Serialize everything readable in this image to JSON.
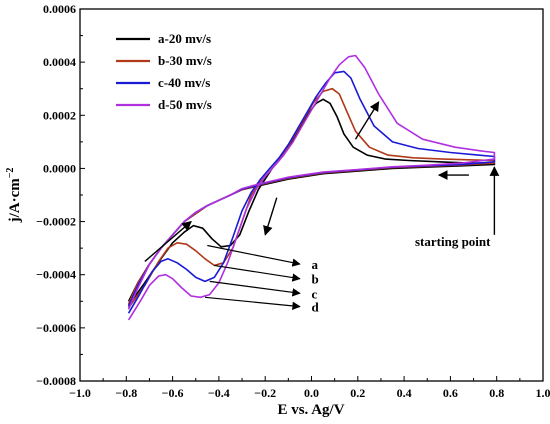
{
  "chart_data": {
    "type": "line",
    "title": "",
    "xlabel": "E vs. Ag/V",
    "ylabel": "j/A·cm",
    "ylabel_sup": "−2",
    "xlim": [
      -1.0,
      1.0
    ],
    "ylim": [
      -0.0008,
      0.0006
    ],
    "x_ticks": [
      -1.0,
      -0.8,
      -0.6,
      -0.4,
      -0.2,
      0.0,
      0.2,
      0.4,
      0.6,
      0.8,
      1.0
    ],
    "x_tick_labels": [
      "−1.0",
      "−0.8",
      "−0.6",
      "−0.4",
      "−0.2",
      "0.0",
      "0.2",
      "0.4",
      "0.6",
      "0.8",
      "1.0"
    ],
    "y_ticks": [
      -0.0008,
      -0.0006,
      -0.0004,
      -0.0002,
      0.0,
      0.0002,
      0.0004,
      0.0006
    ],
    "y_tick_labels": [
      "−0.0008",
      "−0.0006",
      "−0.0004",
      "−0.0002",
      "0.0000",
      "0.0002",
      "0.0004",
      "0.0006"
    ],
    "grid": false,
    "legend_position": "top-left",
    "series": [
      {
        "name": "a-20 mv/s",
        "color": "#000000",
        "x": [
          -0.79,
          -0.72,
          -0.65,
          -0.6,
          -0.55,
          -0.51,
          -0.47,
          -0.43,
          -0.39,
          -0.35,
          -0.31,
          -0.27,
          -0.23,
          -0.2,
          -0.17,
          -0.14,
          -0.1,
          -0.06,
          -0.02,
          0.02,
          0.05,
          0.08,
          0.11,
          0.14,
          0.18,
          0.24,
          0.32,
          0.42,
          0.55,
          0.68,
          0.79,
          0.79,
          0.65,
          0.5,
          0.35,
          0.2,
          0.05,
          -0.1,
          -0.15,
          -0.2,
          -0.25,
          -0.3,
          -0.35,
          -0.4,
          -0.45,
          -0.5,
          -0.55,
          -0.6,
          -0.65,
          -0.7,
          -0.75,
          -0.79
        ],
        "y": [
          -0.000515,
          -0.00043,
          -0.00034,
          -0.00028,
          -0.00024,
          -0.000215,
          -0.000225,
          -0.000265,
          -0.000295,
          -0.00029,
          -0.00025,
          -0.00016,
          -8e-05,
          -4e-05,
          0.0,
          3e-05,
          8e-05,
          0.00014,
          0.0002,
          0.000245,
          0.00026,
          0.000245,
          0.000195,
          0.00013,
          8e-05,
          5e-05,
          3.5e-05,
          3e-05,
          2.5e-05,
          2e-05,
          2e-05,
          1.5e-05,
          1e-05,
          5e-06,
          0.0,
          -1e-05,
          -2e-05,
          -4e-05,
          -5e-05,
          -6e-05,
          -7e-05,
          -8e-05,
          -0.0001,
          -0.00012,
          -0.00014,
          -0.00017,
          -0.0002,
          -0.00025,
          -0.0003,
          -0.00036,
          -0.00043,
          -0.0005
        ]
      },
      {
        "name": "b-30 mv/s",
        "color": "#b03a1a",
        "x": [
          -0.79,
          -0.72,
          -0.66,
          -0.62,
          -0.58,
          -0.54,
          -0.5,
          -0.46,
          -0.42,
          -0.38,
          -0.34,
          -0.3,
          -0.26,
          -0.22,
          -0.18,
          -0.15,
          -0.11,
          -0.07,
          -0.03,
          0.01,
          0.05,
          0.09,
          0.12,
          0.15,
          0.19,
          0.25,
          0.33,
          0.44,
          0.57,
          0.7,
          0.79,
          0.79,
          0.65,
          0.5,
          0.35,
          0.2,
          0.05,
          -0.1,
          -0.15,
          -0.2,
          -0.25,
          -0.3,
          -0.35,
          -0.4,
          -0.45,
          -0.5,
          -0.55,
          -0.6,
          -0.65,
          -0.7,
          -0.75,
          -0.79
        ],
        "y": [
          -0.000525,
          -0.00044,
          -0.00035,
          -0.0003,
          -0.00028,
          -0.000285,
          -0.00031,
          -0.00034,
          -0.000365,
          -0.000355,
          -0.0003,
          -0.0002,
          -0.0001,
          -5e-05,
          -1e-05,
          2e-05,
          7e-05,
          0.00013,
          0.00019,
          0.00025,
          0.00029,
          0.0003,
          0.00028,
          0.00022,
          0.00014,
          8e-05,
          5e-05,
          4e-05,
          3.5e-05,
          3.2e-05,
          3e-05,
          2e-05,
          1.3e-05,
          8e-06,
          3e-06,
          -7e-06,
          -1.7e-05,
          -3.7e-05,
          -4.7e-05,
          -5.7e-05,
          -6.8e-05,
          -8e-05,
          -0.0001,
          -0.00012,
          -0.00014,
          -0.00017,
          -0.0002,
          -0.00025,
          -0.0003,
          -0.00036,
          -0.00043,
          -0.00051
        ]
      },
      {
        "name": "c-40 mv/s",
        "color": "#1a1ad6",
        "x": [
          -0.79,
          -0.74,
          -0.69,
          -0.65,
          -0.62,
          -0.58,
          -0.54,
          -0.5,
          -0.46,
          -0.42,
          -0.38,
          -0.34,
          -0.3,
          -0.26,
          -0.22,
          -0.18,
          -0.14,
          -0.1,
          -0.06,
          -0.02,
          0.02,
          0.06,
          0.1,
          0.14,
          0.17,
          0.21,
          0.27,
          0.35,
          0.46,
          0.6,
          0.72,
          0.79,
          0.79,
          0.65,
          0.5,
          0.35,
          0.2,
          0.05,
          -0.1,
          -0.15,
          -0.2,
          -0.25,
          -0.3,
          -0.35,
          -0.4,
          -0.45,
          -0.5,
          -0.55,
          -0.6,
          -0.65,
          -0.7,
          -0.75,
          -0.79
        ],
        "y": [
          -0.000545,
          -0.00047,
          -0.00039,
          -0.00035,
          -0.00034,
          -0.000355,
          -0.00038,
          -0.00041,
          -0.000425,
          -0.00041,
          -0.000355,
          -0.00026,
          -0.00016,
          -9e-05,
          -4e-05,
          0.0,
          4e-05,
          9e-05,
          0.00015,
          0.00021,
          0.00027,
          0.00032,
          0.00036,
          0.000365,
          0.00034,
          0.00026,
          0.00016,
          0.0001,
          7.5e-05,
          6e-05,
          5e-05,
          4.5e-05,
          2.5e-05,
          1.5e-05,
          1e-05,
          5e-06,
          -5e-06,
          -1.5e-05,
          -3.5e-05,
          -4.5e-05,
          -5.5e-05,
          -6.6e-05,
          -7.8e-05,
          -0.0001,
          -0.00012,
          -0.00014,
          -0.000165,
          -0.0002,
          -0.00025,
          -0.0003,
          -0.00036,
          -0.00044,
          -0.00052
        ]
      },
      {
        "name": "d-50 mv/s",
        "color": "#b030e0",
        "x": [
          -0.79,
          -0.74,
          -0.7,
          -0.66,
          -0.63,
          -0.6,
          -0.56,
          -0.52,
          -0.48,
          -0.44,
          -0.4,
          -0.36,
          -0.32,
          -0.28,
          -0.24,
          -0.2,
          -0.16,
          -0.12,
          -0.08,
          -0.04,
          0.0,
          0.04,
          0.08,
          0.12,
          0.16,
          0.19,
          0.23,
          0.29,
          0.37,
          0.48,
          0.62,
          0.74,
          0.79,
          0.79,
          0.65,
          0.5,
          0.35,
          0.2,
          0.05,
          -0.1,
          -0.15,
          -0.2,
          -0.25,
          -0.3,
          -0.35,
          -0.4,
          -0.45,
          -0.5,
          -0.55,
          -0.6,
          -0.65,
          -0.7,
          -0.75,
          -0.79
        ],
        "y": [
          -0.00057,
          -0.0005,
          -0.00044,
          -0.000405,
          -0.0004,
          -0.000415,
          -0.00045,
          -0.00048,
          -0.000485,
          -0.000475,
          -0.00043,
          -0.00035,
          -0.00025,
          -0.00015,
          -8e-05,
          -3e-05,
          1e-05,
          5e-05,
          0.0001,
          0.00016,
          0.00022,
          0.00028,
          0.00034,
          0.00039,
          0.00042,
          0.000425,
          0.00038,
          0.00028,
          0.00017,
          0.00011,
          8e-05,
          6.5e-05,
          6e-05,
          3.5e-05,
          2e-05,
          1.2e-05,
          6e-06,
          -4e-06,
          -1.4e-05,
          -3.3e-05,
          -4.3e-05,
          -5.3e-05,
          -6.4e-05,
          -7.6e-05,
          -0.0001,
          -0.00012,
          -0.00014,
          -0.000165,
          -0.0002,
          -0.00025,
          -0.0003,
          -0.00036,
          -0.00045,
          -0.00053
        ]
      }
    ],
    "annotations": {
      "curve_labels": [
        {
          "text": "a",
          "x": 0.0,
          "y": -0.00036
        },
        {
          "text": "b",
          "x": 0.0,
          "y": -0.000415
        },
        {
          "text": "c",
          "x": 0.0,
          "y": -0.00047
        },
        {
          "text": "d",
          "x": 0.0,
          "y": -0.00052
        }
      ],
      "starting_point": {
        "text": "starting point",
        "point_x": 0.79,
        "point_y": 0.0,
        "text_x": 0.65,
        "text_y": -0.00032
      }
    }
  }
}
